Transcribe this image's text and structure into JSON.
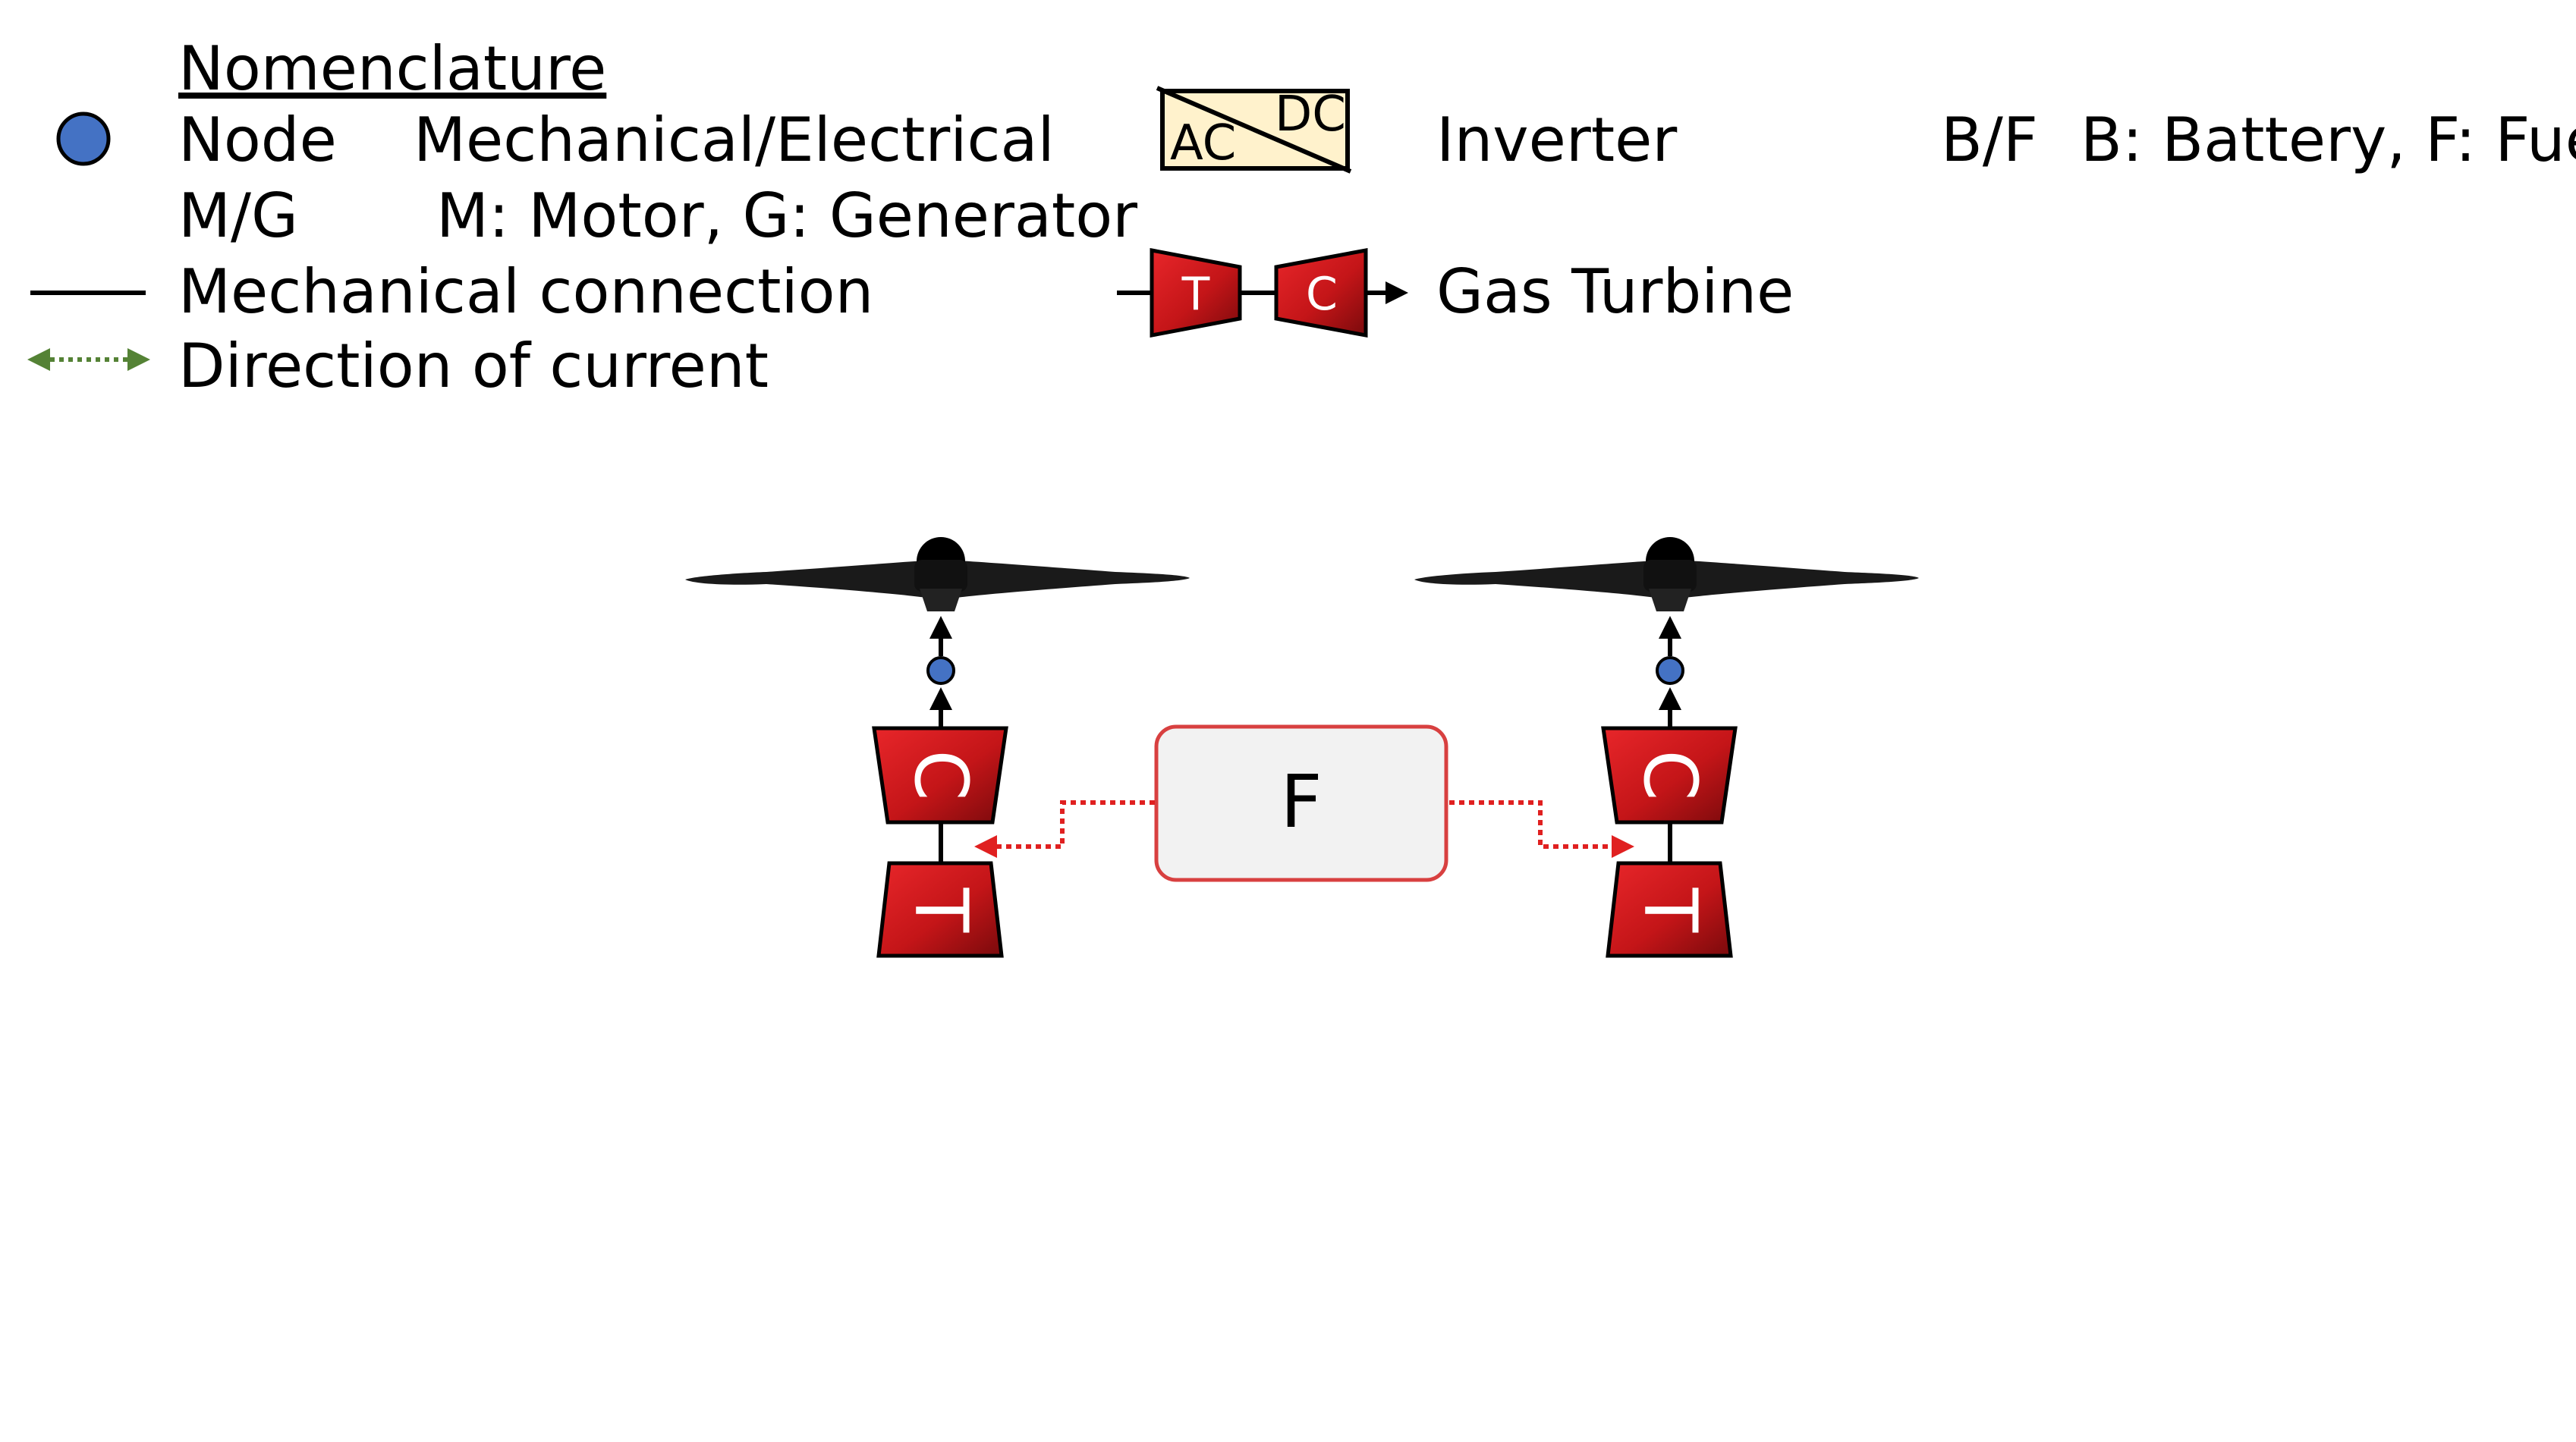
{
  "legend": {
    "title": "Nomenclature",
    "node_label": "Node",
    "node_desc": "Mechanical/Electrical",
    "mg_label": "M/G",
    "mg_desc": "M: Motor, G: Generator",
    "mech_label": "Mechanical connection",
    "current_label": "Direction of current",
    "inverter_label": "Inverter",
    "inverter_ac": "AC",
    "inverter_dc": "DC",
    "bf_label": "B/F",
    "bf_desc": "B: Battery, F: Fuel",
    "gt_label": "Gas Turbine",
    "gt_t": "T",
    "gt_c": "C"
  },
  "diagram": {
    "fuel_label": "F",
    "left_c": "C",
    "left_t": "T",
    "right_c": "C",
    "right_t": "T"
  },
  "colors": {
    "turbine_red": "#d0191c",
    "turbine_dark": "#8a0c0e",
    "node_blue": "#4472c4",
    "current_green": "#548235",
    "fuel_line_red": "#e02020",
    "inverter_fill": "#fff2cc",
    "fuel_box_fill": "#f2f2f2",
    "fuel_box_stroke": "#d84040"
  }
}
